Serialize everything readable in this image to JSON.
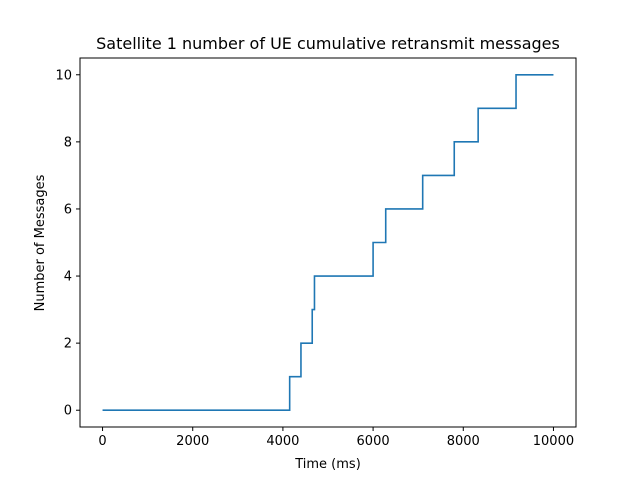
{
  "chart_data": {
    "type": "line",
    "title": "Satellite 1 number of UE cumulative retransmit messages",
    "xlabel": "Time (ms)",
    "ylabel": "Number of Messages",
    "xlim": [
      -500,
      10500
    ],
    "ylim": [
      -0.5,
      10.5
    ],
    "x_ticks": [
      0,
      2000,
      4000,
      6000,
      8000,
      10000
    ],
    "y_ticks": [
      0,
      2,
      4,
      6,
      8,
      10
    ],
    "grid": false,
    "step": "post",
    "series": [
      {
        "color": "#1f77b4",
        "x": [
          0,
          4150,
          4400,
          4650,
          4700,
          6000,
          6280,
          7100,
          7800,
          8330,
          9170,
          10000
        ],
        "y": [
          0,
          1,
          2,
          3,
          4,
          5,
          6,
          7,
          8,
          9,
          10,
          10
        ]
      }
    ]
  }
}
